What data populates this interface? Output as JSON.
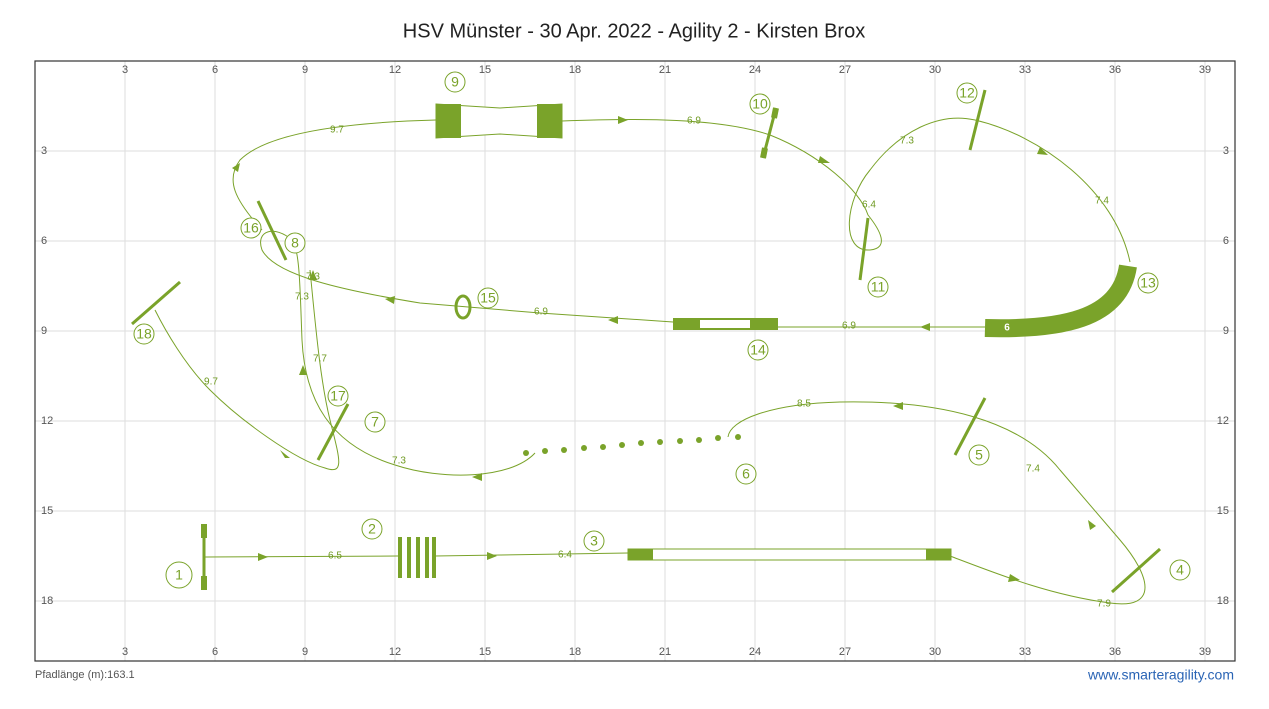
{
  "title": "HSV Münster - 30 Apr. 2022 - Agility 2 - Kirsten Brox",
  "grid": {
    "xlim": [
      0,
      40
    ],
    "ylim": [
      0,
      20
    ],
    "xticks": [
      3,
      6,
      9,
      12,
      15,
      18,
      21,
      24,
      27,
      30,
      33,
      36,
      39
    ],
    "yticks": [
      3,
      6,
      9,
      12,
      15,
      18
    ]
  },
  "obstacles": [
    "1",
    "2",
    "3",
    "4",
    "5",
    "6",
    "7",
    "8",
    "9",
    "10",
    "11",
    "12",
    "13",
    "14",
    "15",
    "16",
    "17",
    "18"
  ],
  "distances": [
    "6.5",
    "6.4",
    "7.9",
    "7.4",
    "8.5",
    "7.3",
    "7.7",
    "7.3",
    "7.3",
    "9.7",
    "6.9",
    "6.4",
    "7.3",
    "7.4",
    "6.9",
    "6.9",
    "9.7"
  ],
  "tunnel_label": "6",
  "footer": {
    "path_length": "Pfadlänge (m):163.1",
    "site": "www.smarteragility.com"
  }
}
